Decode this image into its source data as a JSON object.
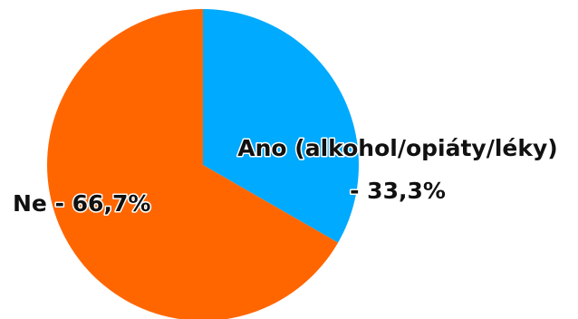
{
  "chart_data": {
    "type": "pie",
    "title": "",
    "start_angle_deg": 0,
    "direction": "clockwise",
    "slices": [
      {
        "label": "Ano (alkohol/opiáty/léky)",
        "value_text": "33,3%",
        "value": 33.3,
        "color": "#00aaff"
      },
      {
        "label": "Ne",
        "value_text": "66,7%",
        "value": 66.7,
        "color": "#ff6600"
      }
    ],
    "legend": "none"
  }
}
